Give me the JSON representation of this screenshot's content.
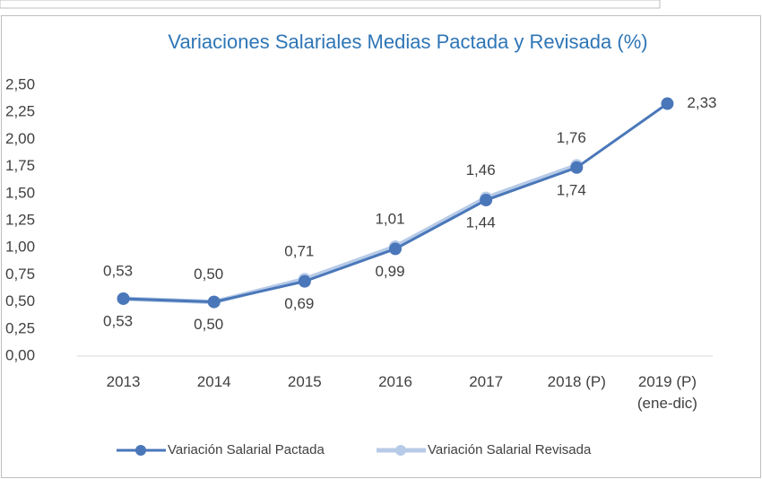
{
  "chart_data": {
    "type": "line",
    "title": "Variaciones Salariales Medias Pactada y Revisada (%)",
    "categories": [
      "2013",
      "2014",
      "2015",
      "2016",
      "2017",
      "2018 (P)",
      "2019 (P)\n(ene-dic)"
    ],
    "series": [
      {
        "name": "Variación Salarial Pactada",
        "color": "#4a77b9",
        "values": [
          0.53,
          0.5,
          0.69,
          0.99,
          1.44,
          1.74,
          2.33
        ],
        "value_labels": [
          "0,53",
          "0,50",
          "0,69",
          "0,99",
          "1,44",
          "1,74",
          "2,33"
        ]
      },
      {
        "name": "Variación Salarial Revisada",
        "color": "#b7cbe8",
        "values": [
          0.53,
          0.5,
          0.71,
          1.01,
          1.46,
          1.76,
          null
        ],
        "value_labels": [
          "0,53",
          "0,50",
          "0,71",
          "1,01",
          "1,46",
          "1,76",
          null
        ]
      }
    ],
    "ylim": [
      0,
      2.5
    ],
    "yticks": [
      {
        "value": 0,
        "label": "0,00"
      },
      {
        "value": 0.25,
        "label": "0,25"
      },
      {
        "value": 0.5,
        "label": "0,50"
      },
      {
        "value": 0.75,
        "label": "0,75"
      },
      {
        "value": 1,
        "label": "1,00"
      },
      {
        "value": 1.25,
        "label": "1,25"
      },
      {
        "value": 1.5,
        "label": "1,50"
      },
      {
        "value": 1.75,
        "label": "1,75"
      },
      {
        "value": 2,
        "label": "2,00"
      },
      {
        "value": 2.25,
        "label": "2,25"
      },
      {
        "value": 2.5,
        "label": "2,50"
      }
    ],
    "grid": false,
    "legend": "bottom"
  }
}
